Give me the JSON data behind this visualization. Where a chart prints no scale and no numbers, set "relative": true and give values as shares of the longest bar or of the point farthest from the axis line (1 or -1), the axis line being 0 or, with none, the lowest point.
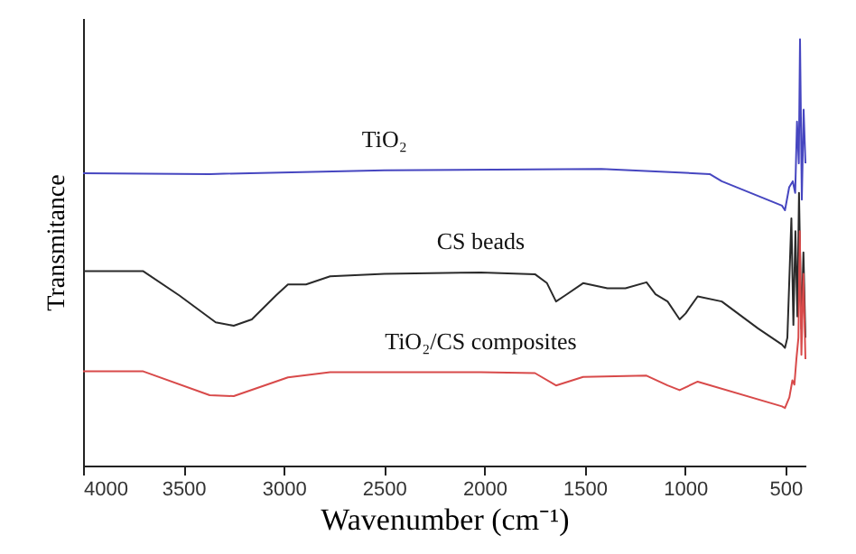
{
  "chart_data": {
    "type": "line",
    "relative": true,
    "xlabel": "Wavenumber (cm⁻¹)",
    "ylabel": "Transmitance",
    "xlim": [
      4000,
      400
    ],
    "xticks": [
      4000,
      3500,
      3000,
      2500,
      2000,
      1500,
      1000,
      500
    ],
    "grid": false,
    "marker": "none",
    "line_style": "solid",
    "series": [
      {
        "name": "TiO₂",
        "color": "#4646c0",
        "x": [
          4000,
          3369,
          2498,
          1417,
          877,
          817,
          517,
          502,
          481,
          463,
          451,
          442,
          433,
          427,
          418,
          409,
          400
        ],
        "values": [
          0.686,
          0.684,
          0.693,
          0.696,
          0.684,
          0.667,
          0.61,
          0.599,
          0.653,
          0.667,
          0.64,
          0.807,
          0.709,
          1.0,
          0.624,
          0.835,
          0.709
        ]
      },
      {
        "name": "CS beads",
        "color": "#2a2a2a",
        "x": [
          4000,
          3700,
          3520,
          3339,
          3249,
          3159,
          3039,
          2979,
          2889,
          2769,
          2498,
          2018,
          1748,
          1688,
          1643,
          1598,
          1508,
          1387,
          1297,
          1192,
          1147,
          1087,
          1027,
          997,
          937,
          817,
          637,
          517,
          502,
          490,
          470,
          460,
          450,
          440,
          432,
          420,
          410,
          400
        ],
        "values": [
          0.456,
          0.456,
          0.399,
          0.336,
          0.328,
          0.343,
          0.399,
          0.425,
          0.425,
          0.444,
          0.45,
          0.453,
          0.449,
          0.428,
          0.385,
          0.399,
          0.428,
          0.416,
          0.416,
          0.43,
          0.402,
          0.385,
          0.343,
          0.357,
          0.397,
          0.385,
          0.322,
          0.284,
          0.276,
          0.3,
          0.58,
          0.33,
          0.55,
          0.35,
          0.64,
          0.32,
          0.5,
          0.3
        ]
      },
      {
        "name": "TiO₂/CS composites",
        "color": "#d84a4a",
        "x": [
          4000,
          3700,
          3369,
          3249,
          2979,
          2769,
          2018,
          1748,
          1643,
          1508,
          1192,
          1087,
          1027,
          937,
          517,
          502,
          480,
          465,
          455,
          445,
          435,
          428,
          420,
          410,
          400
        ],
        "values": [
          0.221,
          0.221,
          0.165,
          0.163,
          0.207,
          0.219,
          0.219,
          0.217,
          0.188,
          0.208,
          0.211,
          0.188,
          0.177,
          0.197,
          0.139,
          0.135,
          0.16,
          0.2,
          0.19,
          0.25,
          0.3,
          0.55,
          0.26,
          0.45,
          0.25
        ]
      }
    ]
  }
}
